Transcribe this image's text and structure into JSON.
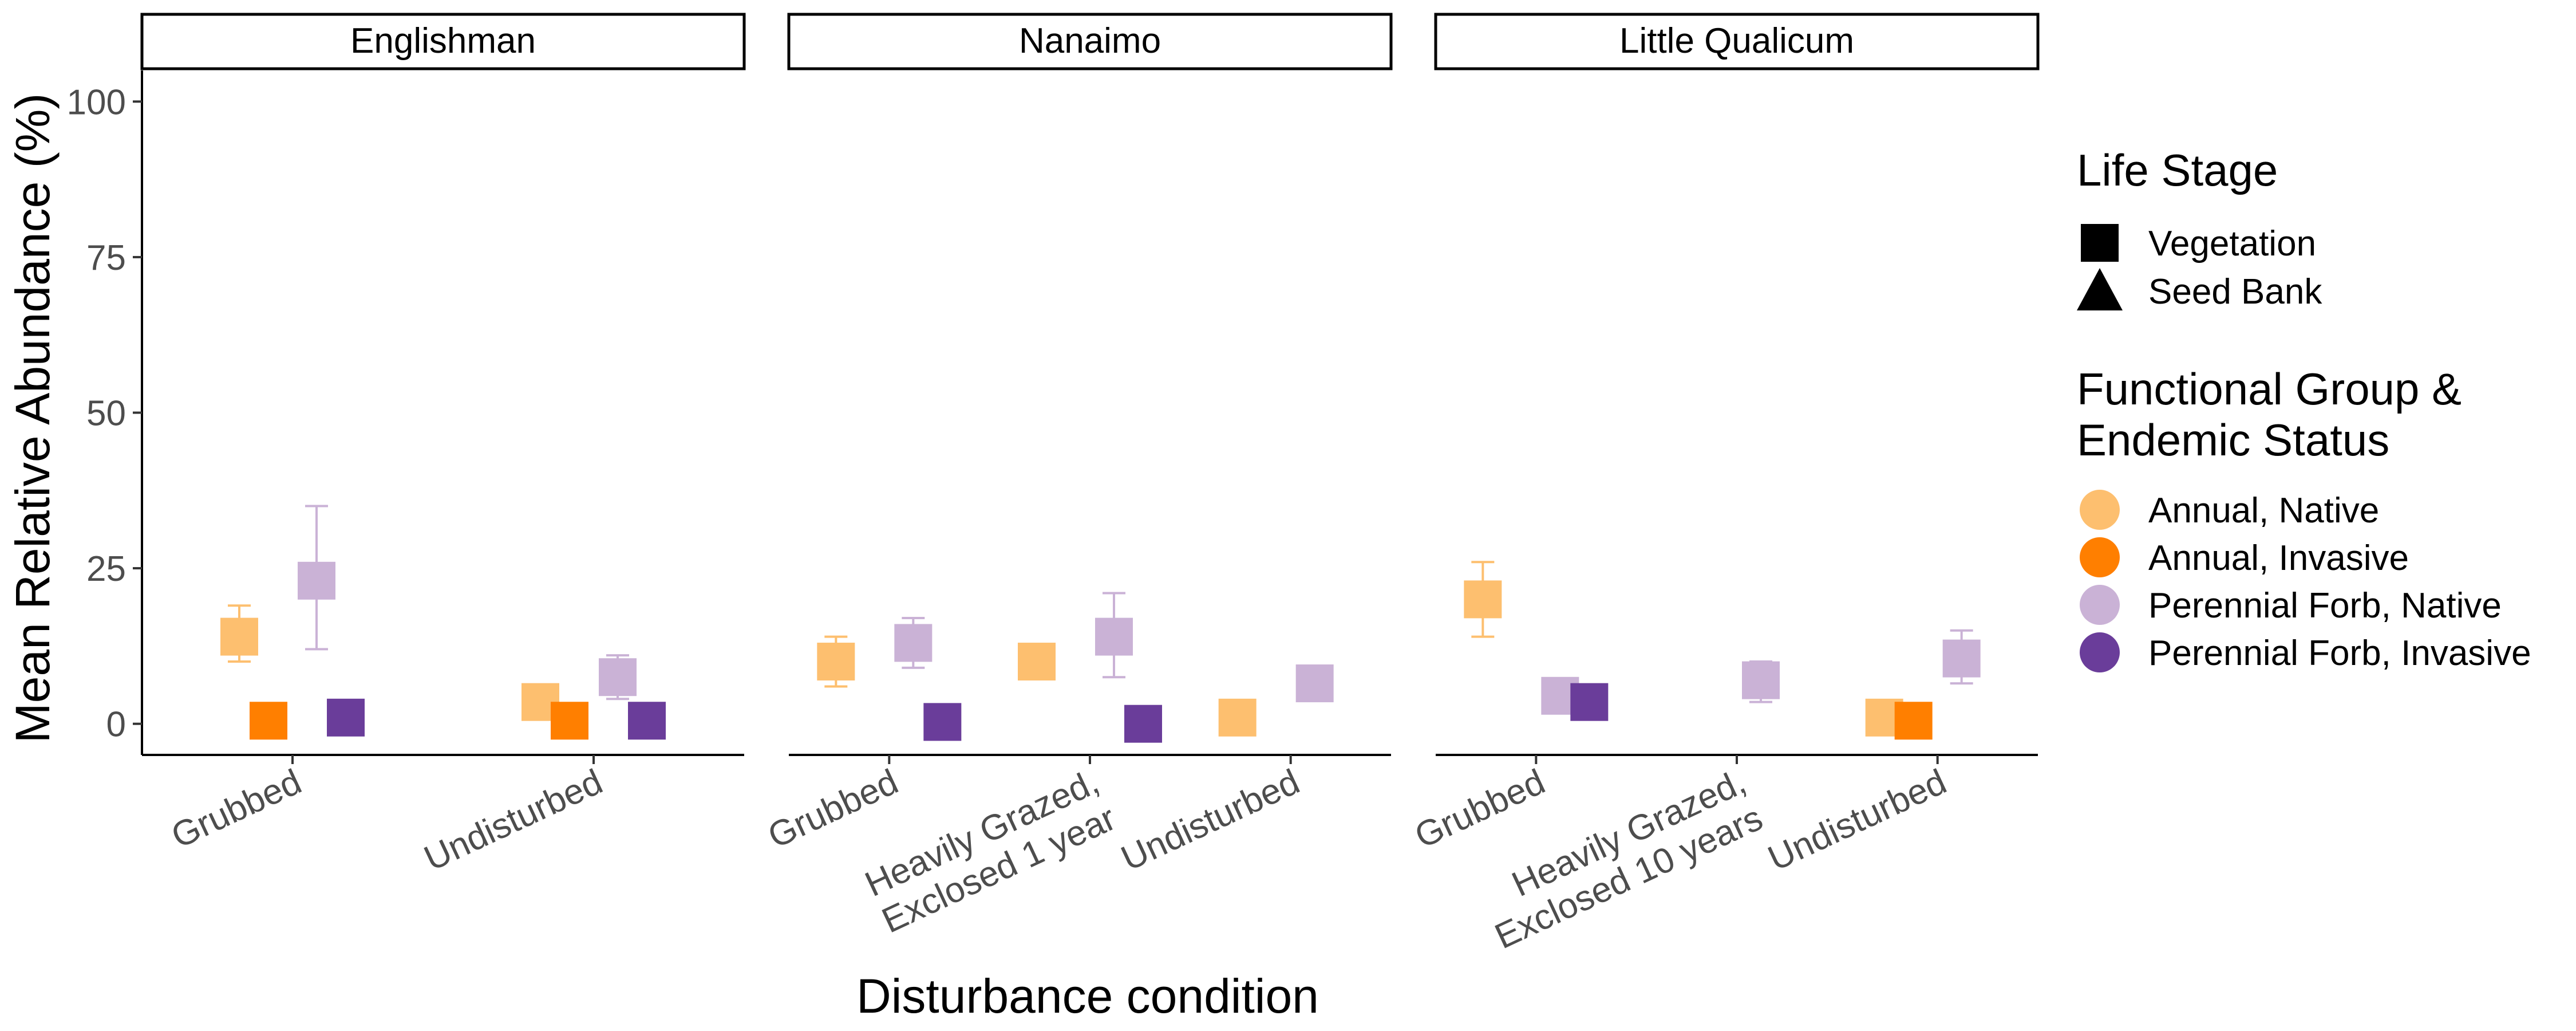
{
  "chart_data": {
    "type": "scatter",
    "ylabel": "Mean Relative Abundance (%)",
    "xlabel": "Disturbance condition",
    "ylim": [
      -5,
      105
    ],
    "yticks": [
      0,
      25,
      50,
      75,
      100
    ],
    "grid": false,
    "legend_position": "right",
    "legend": {
      "shape_title": "Life Stage",
      "shapes": [
        {
          "label": "Vegetation",
          "shape": "square"
        },
        {
          "label": "Seed Bank",
          "shape": "triangle"
        }
      ],
      "color_title_line1": "Functional Group &",
      "color_title_line2": "Endemic Status",
      "groups": [
        {
          "label": "Annual, Native",
          "color": "#FDBF6F"
        },
        {
          "label": "Annual, Invasive",
          "color": "#FF7F00"
        },
        {
          "label": "Perennial Forb, Native",
          "color": "#CAB2D6"
        },
        {
          "label": "Perennial Forb, Invasive",
          "color": "#6A3D9A"
        }
      ]
    },
    "panels": [
      {
        "title": "Englishman",
        "categories": [
          "Grubbed",
          "Undisturbed"
        ],
        "points": [
          {
            "category": "Grubbed",
            "group": 0,
            "shape": "square",
            "y": 14,
            "ymin": 10,
            "ymax": 19
          },
          {
            "category": "Grubbed",
            "group": 1,
            "shape": "square",
            "y": 0.5
          },
          {
            "category": "Grubbed",
            "group": 2,
            "shape": "square",
            "y": 23,
            "ymin": 12,
            "ymax": 35
          },
          {
            "category": "Grubbed",
            "group": 3,
            "shape": "square",
            "y": 1
          },
          {
            "category": "Undisturbed",
            "group": 0,
            "shape": "square",
            "y": 3.5,
            "ymin": 1,
            "ymax": 6
          },
          {
            "category": "Undisturbed",
            "group": 1,
            "shape": "square",
            "y": 0.5
          },
          {
            "category": "Undisturbed",
            "group": 2,
            "shape": "square",
            "y": 7.5,
            "ymin": 4,
            "ymax": 11
          },
          {
            "category": "Undisturbed",
            "group": 3,
            "shape": "square",
            "y": 0.5
          }
        ]
      },
      {
        "title": "Nanaimo",
        "categories": [
          "Grubbed",
          "Heavily Grazed,\nExclosed 1 year",
          "Undisturbed"
        ],
        "points": [
          {
            "category": "Grubbed",
            "group": 0,
            "shape": "square",
            "y": 10,
            "ymin": 6,
            "ymax": 14
          },
          {
            "category": "Grubbed",
            "group": 2,
            "shape": "square",
            "y": 13,
            "ymin": 9,
            "ymax": 17
          },
          {
            "category": "Grubbed",
            "group": 3,
            "shape": "square",
            "y": 0.3
          },
          {
            "category": "Heavily Grazed,\nExclosed 1 year",
            "group": 0,
            "shape": "square",
            "y": 10
          },
          {
            "category": "Heavily Grazed,\nExclosed 1 year",
            "group": 2,
            "shape": "square",
            "y": 14,
            "ymin": 7.5,
            "ymax": 21
          },
          {
            "category": "Heavily Grazed,\nExclosed 1 year",
            "group": 3,
            "shape": "square",
            "y": 0
          },
          {
            "category": "Undisturbed",
            "group": 0,
            "shape": "square",
            "y": 1
          },
          {
            "category": "Undisturbed",
            "group": 2,
            "shape": "square",
            "y": 6.5
          }
        ]
      },
      {
        "title": "Little Qualicum",
        "categories": [
          "Grubbed",
          "Heavily Grazed,\nExclosed 10 years",
          "Undisturbed"
        ],
        "points": [
          {
            "category": "Grubbed",
            "group": 0,
            "shape": "square",
            "y": 20,
            "ymin": 14,
            "ymax": 26
          },
          {
            "category": "Grubbed",
            "group": 2,
            "shape": "square",
            "y": 4.5
          },
          {
            "category": "Grubbed",
            "group": 3,
            "shape": "square",
            "y": 3.5
          },
          {
            "category": "Heavily Grazed,\nExclosed 10 years",
            "group": 2,
            "shape": "square",
            "y": 7,
            "ymin": 3.5,
            "ymax": 10
          },
          {
            "category": "Undisturbed",
            "group": 0,
            "shape": "square",
            "y": 1
          },
          {
            "category": "Undisturbed",
            "group": 1,
            "shape": "square",
            "y": 0.5
          },
          {
            "category": "Undisturbed",
            "group": 2,
            "shape": "square",
            "y": 10.5,
            "ymin": 6.5,
            "ymax": 15
          }
        ]
      }
    ]
  }
}
